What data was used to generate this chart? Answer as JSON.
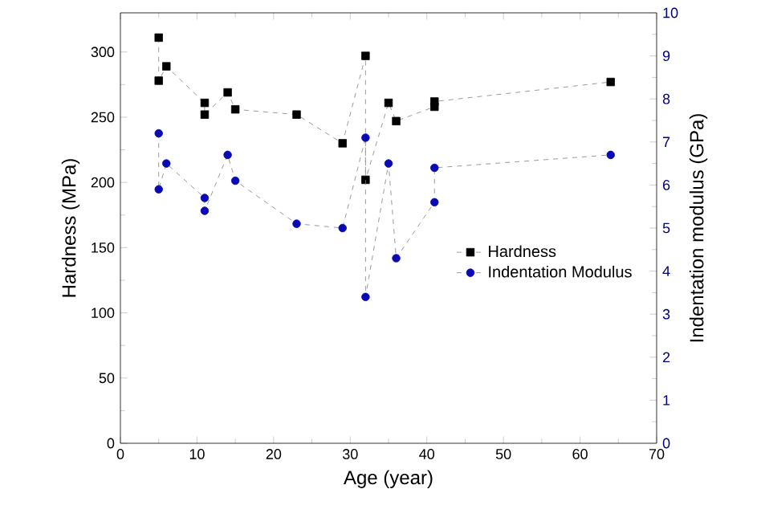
{
  "chart_data": {
    "type": "line",
    "xlabel": "Age (year)",
    "ylabel": "Hardness (MPa)",
    "y2label": "Indentation modulus (GPa)",
    "xlim": [
      0,
      70
    ],
    "xticks": [
      0,
      10,
      20,
      30,
      40,
      50,
      60,
      70
    ],
    "ylim": [
      0,
      330
    ],
    "yticks": [
      0,
      50,
      100,
      150,
      200,
      250,
      300
    ],
    "y2lim": [
      0,
      10
    ],
    "y2ticks": [
      0,
      1,
      2,
      3,
      4,
      5,
      6,
      7,
      8,
      9,
      10
    ],
    "legend": "right",
    "line_style": "dashed",
    "series": [
      {
        "name": "Hardness",
        "color": "#000000",
        "marker": "square",
        "x": [
          5,
          5,
          6,
          11,
          11,
          14,
          15,
          23,
          29,
          32,
          32,
          35,
          36,
          41,
          41,
          64
        ],
        "values": [
          311,
          278,
          289,
          261,
          252,
          269,
          256,
          252,
          230,
          297,
          202,
          261,
          247,
          258,
          262,
          277
        ]
      },
      {
        "name": "Indentation Modulus",
        "color": "#0a0ab4",
        "marker": "circle",
        "axis": "y2",
        "x": [
          5,
          5,
          6,
          11,
          11,
          14,
          15,
          23,
          29,
          32,
          32,
          35,
          36,
          41,
          41,
          64
        ],
        "values": [
          7.2,
          5.9,
          6.5,
          5.7,
          5.4,
          6.7,
          6.1,
          5.1,
          5.0,
          7.1,
          3.4,
          6.5,
          4.3,
          5.6,
          6.4,
          6.7
        ]
      }
    ]
  }
}
